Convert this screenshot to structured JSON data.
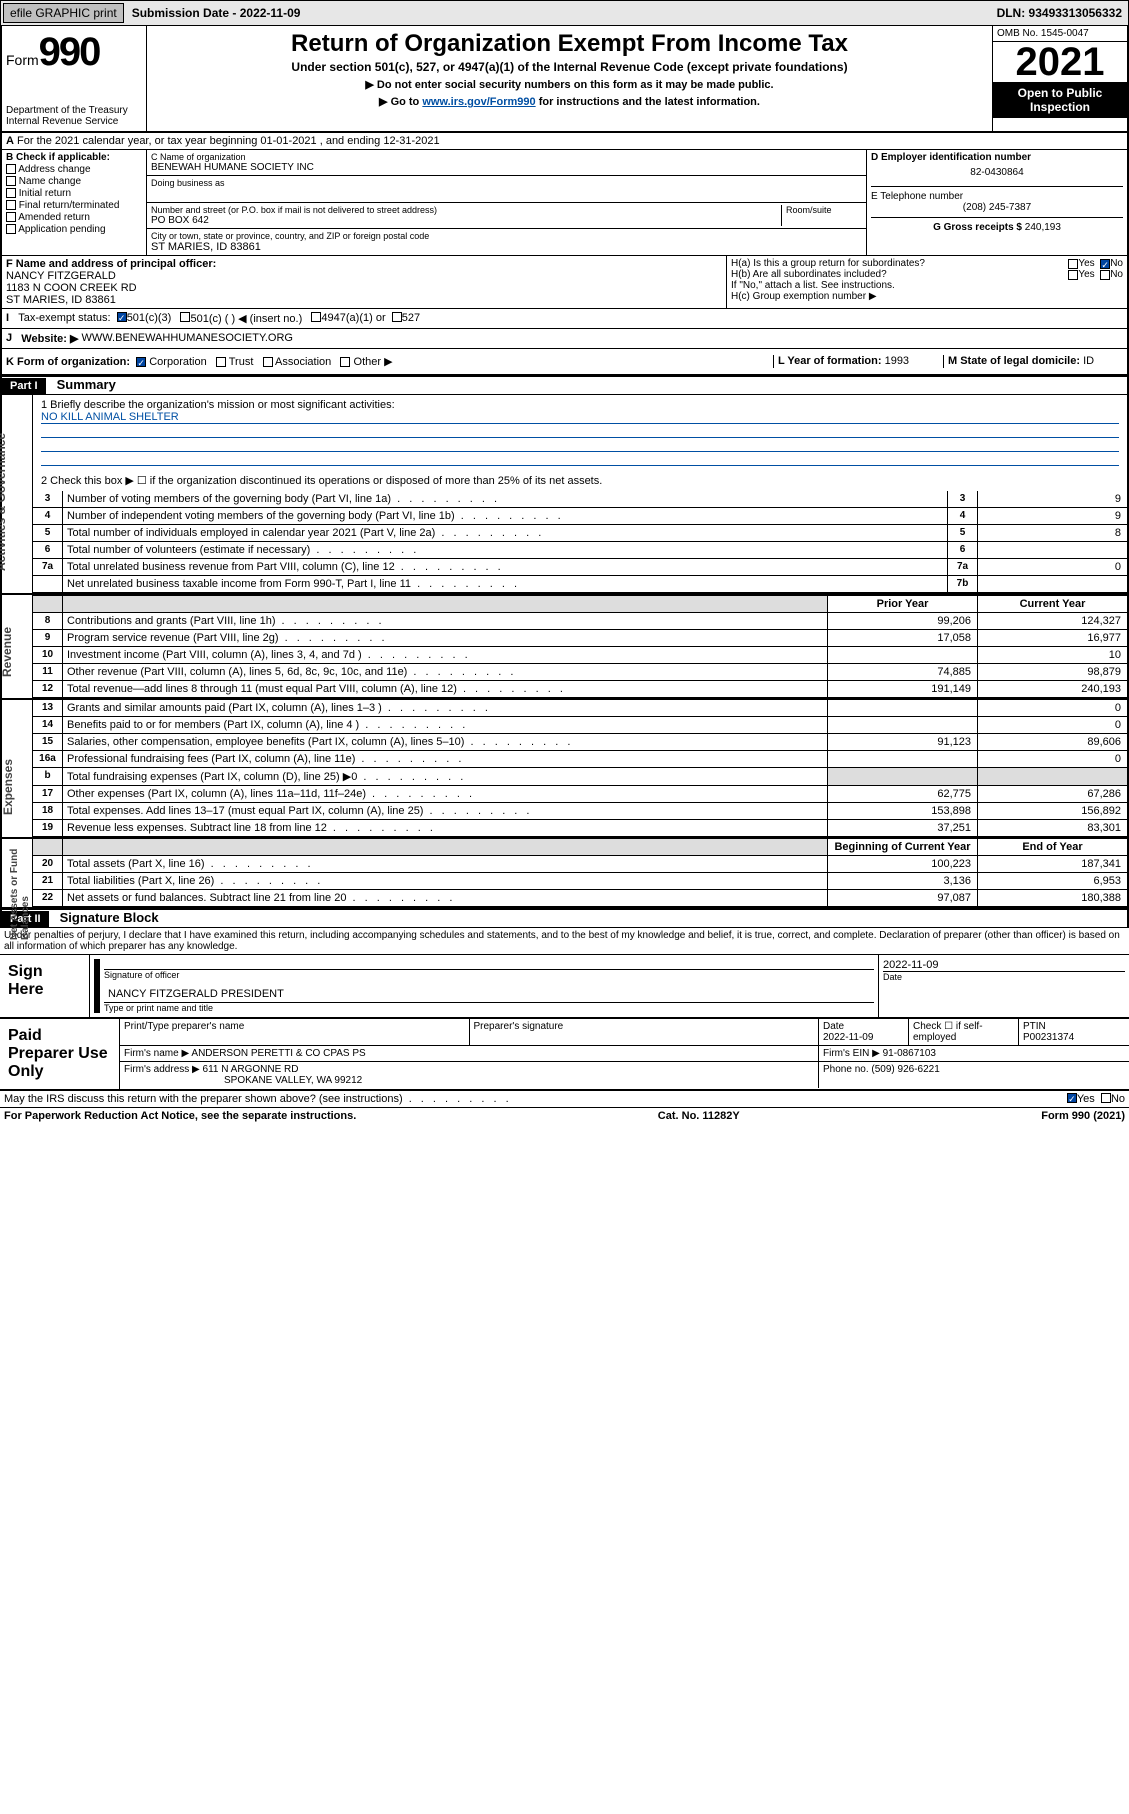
{
  "topbar": {
    "efile_btn": "efile GRAPHIC print",
    "sub_label": "Submission Date - 2022-11-09",
    "dln": "DLN: 93493313056332"
  },
  "header": {
    "form_word": "Form",
    "form_num": "990",
    "dept": "Department of the Treasury",
    "irs": "Internal Revenue Service",
    "title": "Return of Organization Exempt From Income Tax",
    "subtitle": "Under section 501(c), 527, or 4947(a)(1) of the Internal Revenue Code (except private foundations)",
    "instr1": "▶ Do not enter social security numbers on this form as it may be made public.",
    "instr2_pre": "▶ Go to ",
    "instr2_link": "www.irs.gov/Form990",
    "instr2_post": " for instructions and the latest information.",
    "omb": "OMB No. 1545-0047",
    "year": "2021",
    "open": "Open to Public Inspection"
  },
  "periodA": "For the 2021 calendar year, or tax year beginning 01-01-2021  , and ending 12-31-2021",
  "sectionB": {
    "label": "B Check if applicable:",
    "items": [
      "Address change",
      "Name change",
      "Initial return",
      "Final return/terminated",
      "Amended return",
      "Application pending"
    ]
  },
  "sectionC": {
    "name_label": "C Name of organization",
    "name": "BENEWAH HUMANE SOCIETY INC",
    "dba_label": "Doing business as",
    "street_label": "Number and street (or P.O. box if mail is not delivered to street address)",
    "room_label": "Room/suite",
    "street": "PO BOX 642",
    "city_label": "City or town, state or province, country, and ZIP or foreign postal code",
    "city": "ST MARIES, ID  83861"
  },
  "sectionD": {
    "label": "D Employer identification number",
    "value": "82-0430864"
  },
  "sectionE": {
    "label": "E Telephone number",
    "value": "(208) 245-7387"
  },
  "sectionG": {
    "label": "G Gross receipts $",
    "value": "240,193"
  },
  "sectionF": {
    "label": "F Name and address of principal officer:",
    "name": "NANCY FITZGERALD",
    "addr1": "1183 N COON CREEK RD",
    "addr2": "ST MARIES, ID  83861"
  },
  "sectionH": {
    "a": "H(a)  Is this a group return for subordinates?",
    "b": "H(b)  Are all subordinates included?",
    "b_note": "If \"No,\" attach a list. See instructions.",
    "c": "H(c)  Group exemption number ▶",
    "yes": "Yes",
    "no": "No"
  },
  "sectionI": {
    "label": "Tax-exempt status:",
    "opts": [
      "501(c)(3)",
      "501(c) (  ) ◀ (insert no.)",
      "4947(a)(1) or",
      "527"
    ]
  },
  "sectionJ": {
    "label": "Website: ▶",
    "value": "WWW.BENEWAHHUMANESOCIETY.ORG"
  },
  "sectionK": {
    "label": "K Form of organization:",
    "opts": [
      "Corporation",
      "Trust",
      "Association",
      "Other ▶"
    ]
  },
  "sectionL": {
    "label": "L Year of formation:",
    "value": "1993"
  },
  "sectionM": {
    "label": "M State of legal domicile:",
    "value": "ID"
  },
  "part1": {
    "header": "Part I",
    "title": "Summary"
  },
  "mission": {
    "prompt": "1  Briefly describe the organization's mission or most significant activities:",
    "text": "NO KILL ANIMAL SHELTER"
  },
  "line2": "2   Check this box ▶ ☐  if the organization discontinued its operations or disposed of more than 25% of its net assets.",
  "sideTabs": {
    "ag": "Activities & Governance",
    "rev": "Revenue",
    "exp": "Expenses",
    "net": "Net Assets or\nFund Balances"
  },
  "gov_rows": [
    {
      "n": "3",
      "d": "Number of voting members of the governing body (Part VI, line 1a)",
      "l": "3",
      "v": "9"
    },
    {
      "n": "4",
      "d": "Number of independent voting members of the governing body (Part VI, line 1b)",
      "l": "4",
      "v": "9"
    },
    {
      "n": "5",
      "d": "Total number of individuals employed in calendar year 2021 (Part V, line 2a)",
      "l": "5",
      "v": "8"
    },
    {
      "n": "6",
      "d": "Total number of volunteers (estimate if necessary)",
      "l": "6",
      "v": ""
    },
    {
      "n": "7a",
      "d": "Total unrelated business revenue from Part VIII, column (C), line 12",
      "l": "7a",
      "v": "0"
    },
    {
      "n": "",
      "d": "Net unrelated business taxable income from Form 990-T, Part I, line 11",
      "l": "7b",
      "v": ""
    }
  ],
  "colHeaders": {
    "prior": "Prior Year",
    "current": "Current Year",
    "begin": "Beginning of Current Year",
    "end": "End of Year"
  },
  "rev_rows": [
    {
      "n": "8",
      "d": "Contributions and grants (Part VIII, line 1h)",
      "p": "99,206",
      "c": "124,327"
    },
    {
      "n": "9",
      "d": "Program service revenue (Part VIII, line 2g)",
      "p": "17,058",
      "c": "16,977"
    },
    {
      "n": "10",
      "d": "Investment income (Part VIII, column (A), lines 3, 4, and 7d )",
      "p": "",
      "c": "10"
    },
    {
      "n": "11",
      "d": "Other revenue (Part VIII, column (A), lines 5, 6d, 8c, 9c, 10c, and 11e)",
      "p": "74,885",
      "c": "98,879"
    },
    {
      "n": "12",
      "d": "Total revenue—add lines 8 through 11 (must equal Part VIII, column (A), line 12)",
      "p": "191,149",
      "c": "240,193"
    }
  ],
  "exp_rows": [
    {
      "n": "13",
      "d": "Grants and similar amounts paid (Part IX, column (A), lines 1–3 )",
      "p": "",
      "c": "0"
    },
    {
      "n": "14",
      "d": "Benefits paid to or for members (Part IX, column (A), line 4 )",
      "p": "",
      "c": "0"
    },
    {
      "n": "15",
      "d": "Salaries, other compensation, employee benefits (Part IX, column (A), lines 5–10)",
      "p": "91,123",
      "c": "89,606"
    },
    {
      "n": "16a",
      "d": "Professional fundraising fees (Part IX, column (A), line 11e)",
      "p": "",
      "c": "0"
    },
    {
      "n": "b",
      "d": "Total fundraising expenses (Part IX, column (D), line 25) ▶0",
      "p": "gray",
      "c": "gray"
    },
    {
      "n": "17",
      "d": "Other expenses (Part IX, column (A), lines 11a–11d, 11f–24e)",
      "p": "62,775",
      "c": "67,286"
    },
    {
      "n": "18",
      "d": "Total expenses. Add lines 13–17 (must equal Part IX, column (A), line 25)",
      "p": "153,898",
      "c": "156,892"
    },
    {
      "n": "19",
      "d": "Revenue less expenses. Subtract line 18 from line 12",
      "p": "37,251",
      "c": "83,301"
    }
  ],
  "net_rows": [
    {
      "n": "20",
      "d": "Total assets (Part X, line 16)",
      "p": "100,223",
      "c": "187,341"
    },
    {
      "n": "21",
      "d": "Total liabilities (Part X, line 26)",
      "p": "3,136",
      "c": "6,953"
    },
    {
      "n": "22",
      "d": "Net assets or fund balances. Subtract line 21 from line 20",
      "p": "97,087",
      "c": "180,388"
    }
  ],
  "part2": {
    "header": "Part II",
    "title": "Signature Block"
  },
  "penalty": "Under penalties of perjury, I declare that I have examined this return, including accompanying schedules and statements, and to the best of my knowledge and belief, it is true, correct, and complete. Declaration of preparer (other than officer) is based on all information of which preparer has any knowledge.",
  "sign": {
    "here": "Sign Here",
    "sig_officer": "Signature of officer",
    "date": "Date",
    "date_val": "2022-11-09",
    "name": "NANCY FITZGERALD  PRESIDENT",
    "name_label": "Type or print name and title"
  },
  "paid": {
    "title": "Paid Preparer Use Only",
    "print_label": "Print/Type preparer's name",
    "sig_label": "Preparer's signature",
    "date_label": "Date",
    "date_val": "2022-11-09",
    "check_label": "Check ☐ if self-employed",
    "ptin_label": "PTIN",
    "ptin": "P00231374",
    "firm_name_label": "Firm's name    ▶",
    "firm_name": "ANDERSON PERETTI & CO CPAS PS",
    "firm_ein_label": "Firm's EIN ▶",
    "firm_ein": "91-0867103",
    "firm_addr_label": "Firm's address ▶",
    "firm_addr1": "611 N ARGONNE RD",
    "firm_addr2": "SPOKANE VALLEY, WA  99212",
    "phone_label": "Phone no.",
    "phone": "(509) 926-6221"
  },
  "discuss": "May the IRS discuss this return with the preparer shown above? (see instructions)",
  "footer": {
    "left": "For Paperwork Reduction Act Notice, see the separate instructions.",
    "mid": "Cat. No. 11282Y",
    "right": "Form 990 (2021)"
  }
}
